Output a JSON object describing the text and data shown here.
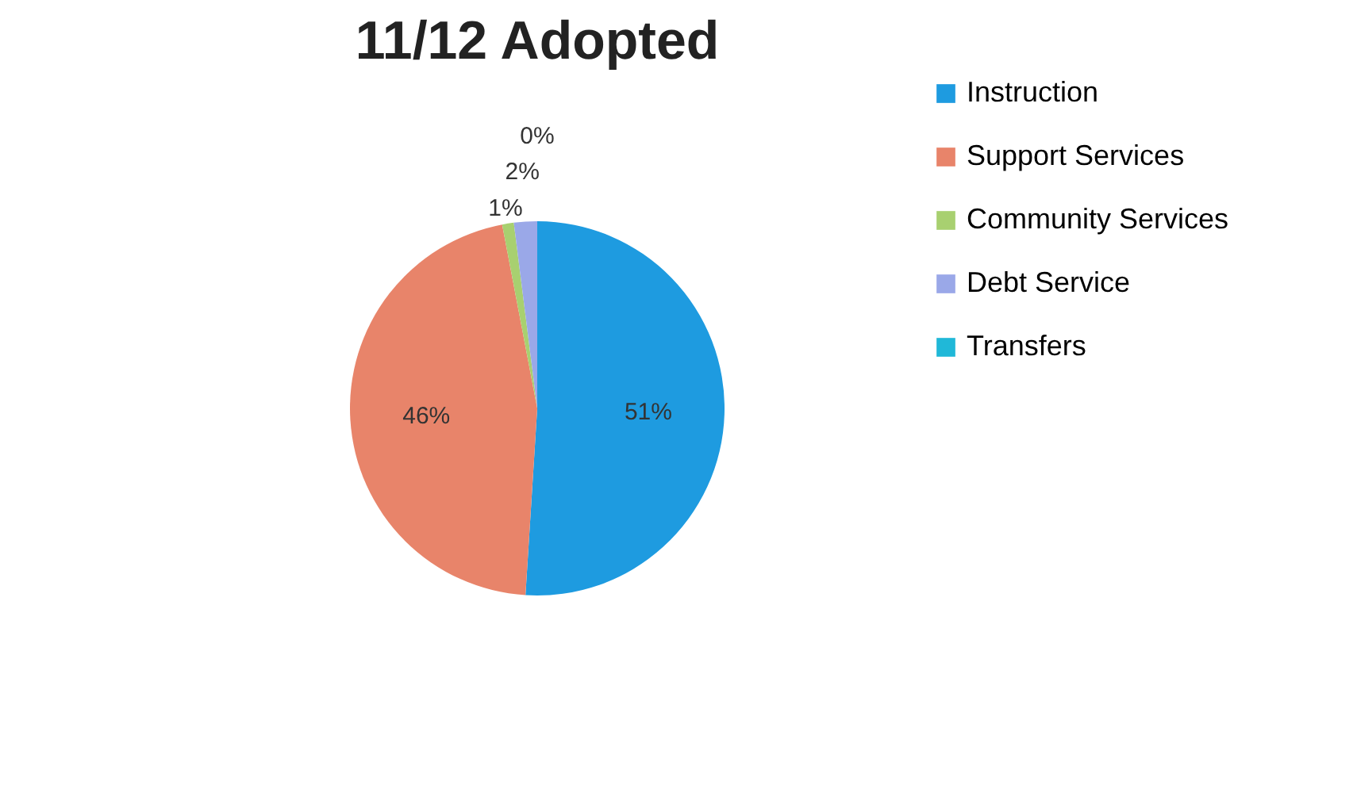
{
  "chart_data": {
    "type": "pie",
    "title": "11/12 Adopted",
    "categories": [
      "Instruction",
      "Support Services",
      "Community Services",
      "Debt Service",
      "Transfers"
    ],
    "values": [
      51,
      46,
      1,
      2,
      0
    ],
    "value_labels": [
      "51%",
      "46%",
      "1%",
      "2%",
      "0%"
    ],
    "colors": [
      "#1e9be0",
      "#e8846a",
      "#a8d070",
      "#9aa8e8",
      "#20b8d8"
    ],
    "legend": "right"
  }
}
